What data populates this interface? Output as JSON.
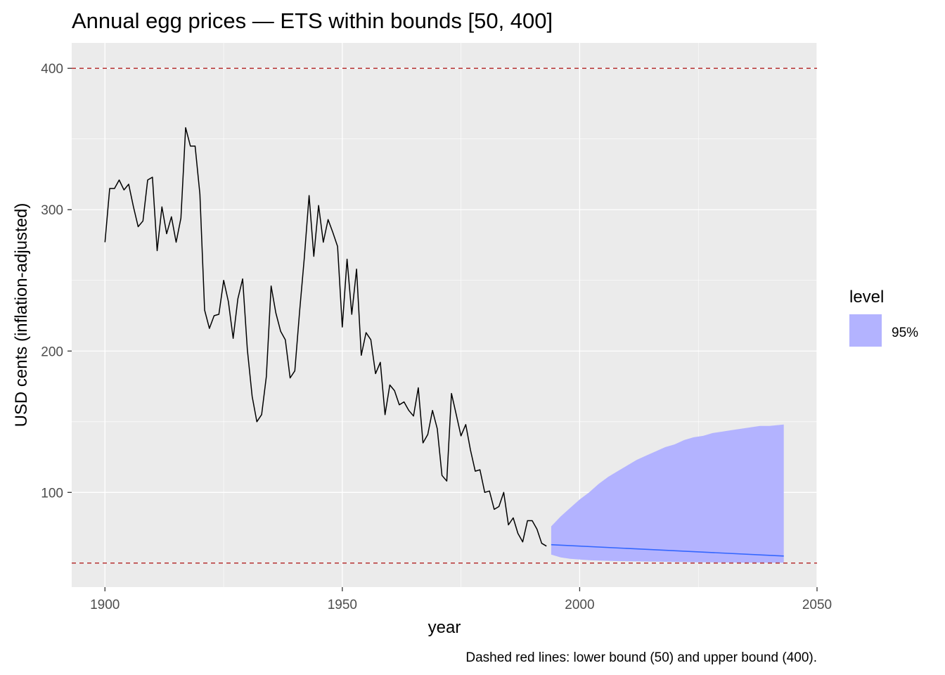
{
  "chart_data": {
    "type": "line",
    "title": "Annual egg prices — ETS within bounds [50, 400]",
    "xlabel": "year",
    "ylabel": "USD cents (inflation-adjusted)",
    "caption": "Dashed red lines: lower bound (50) and upper bound (400).",
    "xlim": [
      1893,
      2050
    ],
    "ylim": [
      33,
      418
    ],
    "x_ticks": [
      1900,
      1950,
      2000,
      2050
    ],
    "y_ticks": [
      100,
      200,
      300,
      400
    ],
    "grid": true,
    "legend": {
      "title": "level",
      "position": "right",
      "entries": [
        {
          "label": "95%",
          "color": "#b3b3ff"
        }
      ]
    },
    "reference_lines": [
      {
        "y": 50,
        "color": "#b22222",
        "style": "dashed"
      },
      {
        "y": 400,
        "color": "#b22222",
        "style": "dashed"
      }
    ],
    "colors": {
      "panel": "#ebebeb",
      "grid": "#ffffff",
      "history": "#000000",
      "forecast": "#3366ff",
      "interval": "#b3b3ff",
      "bounds": "#b22222"
    },
    "series": [
      {
        "kind": "history",
        "x": [
          1900,
          1901,
          1902,
          1903,
          1904,
          1905,
          1906,
          1907,
          1908,
          1909,
          1910,
          1911,
          1912,
          1913,
          1914,
          1915,
          1916,
          1917,
          1918,
          1919,
          1920,
          1921,
          1922,
          1923,
          1924,
          1925,
          1926,
          1927,
          1928,
          1929,
          1930,
          1931,
          1932,
          1933,
          1934,
          1935,
          1936,
          1937,
          1938,
          1939,
          1940,
          1941,
          1942,
          1943,
          1944,
          1945,
          1946,
          1947,
          1948,
          1949,
          1950,
          1951,
          1952,
          1953,
          1954,
          1955,
          1956,
          1957,
          1958,
          1959,
          1960,
          1961,
          1962,
          1963,
          1964,
          1965,
          1966,
          1967,
          1968,
          1969,
          1970,
          1971,
          1972,
          1973,
          1974,
          1975,
          1976,
          1977,
          1978,
          1979,
          1980,
          1981,
          1982,
          1983,
          1984,
          1985,
          1986,
          1987,
          1988,
          1989,
          1990,
          1991,
          1992,
          1993
        ],
        "y": [
          277,
          315,
          315,
          321,
          314,
          318,
          302,
          288,
          292,
          321,
          323,
          271,
          302,
          283,
          295,
          277,
          294,
          358,
          345,
          345,
          311,
          229,
          216,
          225,
          226,
          250,
          235,
          209,
          237,
          251,
          201,
          168,
          150,
          155,
          182,
          246,
          227,
          214,
          208,
          181,
          186,
          228,
          266,
          310,
          267,
          303,
          277,
          293,
          284,
          274,
          217,
          265,
          226,
          258,
          197,
          213,
          208,
          184,
          192,
          155,
          176,
          172,
          162,
          164,
          158,
          154,
          174,
          135,
          141,
          158,
          145,
          112,
          108,
          170,
          155,
          140,
          148,
          130,
          115,
          116,
          100,
          101,
          88,
          90,
          100,
          77,
          82,
          71,
          65,
          80,
          80,
          74,
          64,
          62
        ]
      },
      {
        "kind": "forecast",
        "x": [
          1994,
          2043
        ],
        "y": [
          63,
          55
        ]
      },
      {
        "kind": "interval",
        "level": "95%",
        "x": [
          1994,
          1996,
          1998,
          2000,
          2002,
          2004,
          2006,
          2008,
          2010,
          2012,
          2014,
          2016,
          2018,
          2020,
          2022,
          2024,
          2026,
          2028,
          2030,
          2032,
          2034,
          2036,
          2038,
          2040,
          2043
        ],
        "lower": [
          56,
          54,
          53,
          52.5,
          52,
          51.8,
          51.6,
          51.4,
          51.3,
          51.2,
          51.1,
          51,
          50.9,
          50.8,
          50.7,
          50.6,
          50.5,
          50.5,
          50.4,
          50.4,
          50.3,
          50.3,
          50.3,
          50.2,
          50.2
        ],
        "upper": [
          76,
          83,
          89,
          95,
          100,
          106,
          111,
          115,
          119,
          123,
          126,
          129,
          132,
          134,
          137,
          139,
          140,
          142,
          143,
          144,
          145,
          146,
          147,
          147,
          148
        ]
      }
    ]
  }
}
